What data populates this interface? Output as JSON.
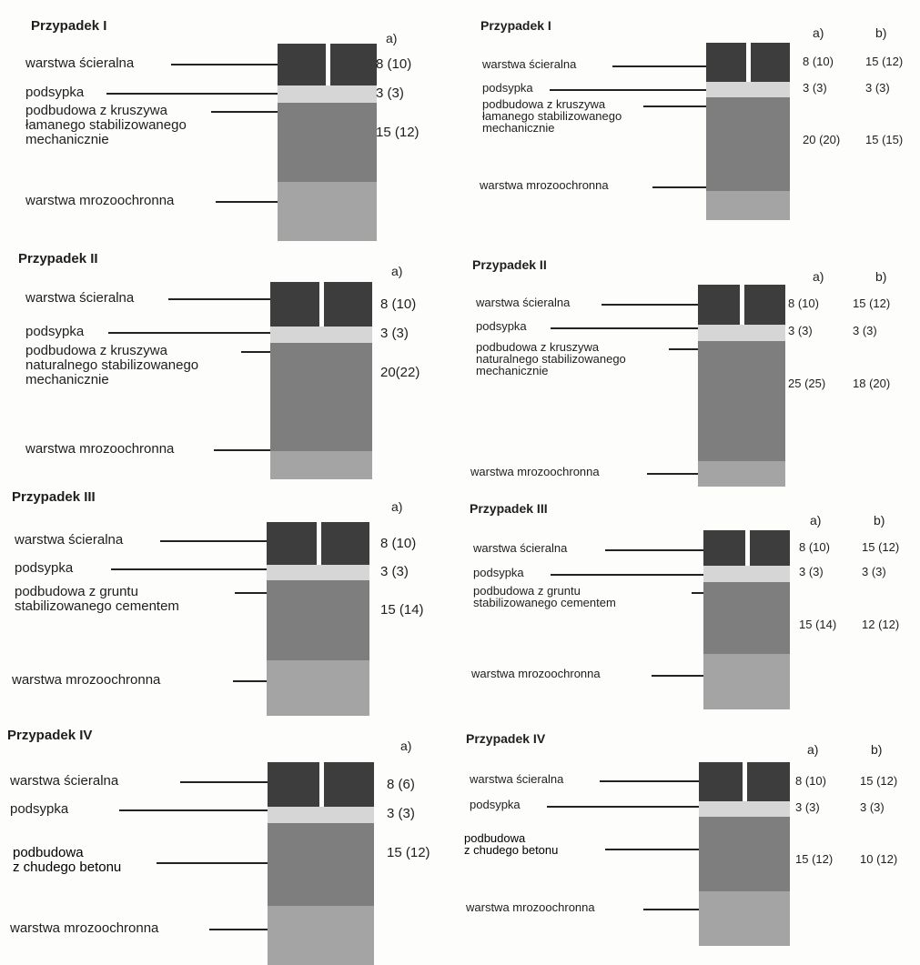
{
  "panels": [
    {
      "title": "Przypadek I",
      "cols": [
        "a)"
      ],
      "labels": {
        "wear": "warstwa ścieralna",
        "sand": "podsypka",
        "base": [
          "podbudowa z kruszywa",
          "łamanego stabilizowanego",
          "mechanicznie"
        ],
        "frost": "warstwa mrozoochronna"
      },
      "values": {
        "wear": [
          "8 (10)"
        ],
        "sand": [
          "3 (3)"
        ],
        "base": [
          "15 (12)"
        ]
      }
    },
    {
      "title": "Przypadek I",
      "cols": [
        "a)",
        "b)"
      ],
      "labels": {
        "wear": "warstwa ścieralna",
        "sand": "podsypka",
        "base": [
          "podbudowa z kruszywa",
          "łamanego stabilizowanego",
          "mechanicznie"
        ],
        "frost": "warstwa mrozoochronna"
      },
      "values": {
        "wear": [
          "8 (10)",
          "15 (12)"
        ],
        "sand": [
          "3 (3)",
          "3 (3)"
        ],
        "base": [
          "20 (20)",
          "15 (15)"
        ]
      }
    },
    {
      "title": "Przypadek II",
      "cols": [
        "a)"
      ],
      "labels": {
        "wear": "warstwa ścieralna",
        "sand": "podsypka",
        "base": [
          "podbudowa z kruszywa",
          "naturalnego stabilizowanego",
          "mechanicznie"
        ],
        "frost": "warstwa mrozoochronna"
      },
      "values": {
        "wear": [
          "8 (10)"
        ],
        "sand": [
          "3 (3)"
        ],
        "base": [
          "20(22)"
        ]
      }
    },
    {
      "title": "Przypadek II",
      "cols": [
        "a)",
        "b)"
      ],
      "labels": {
        "wear": "warstwa ścieralna",
        "sand": "podsypka",
        "base": [
          "podbudowa z kruszywa",
          "naturalnego stabilizowanego",
          "mechanicznie"
        ],
        "frost": "warstwa mrozoochronna"
      },
      "values": {
        "wear": [
          "8 (10)",
          "15 (12)"
        ],
        "sand": [
          "3 (3)",
          "3 (3)"
        ],
        "base": [
          "25 (25)",
          "18 (20)"
        ]
      }
    },
    {
      "title": "Przypadek III",
      "cols": [
        "a)"
      ],
      "labels": {
        "wear": "warstwa ścieralna",
        "sand": "podsypka",
        "base": [
          "podbudowa z gruntu",
          "stabilizowanego cementem"
        ],
        "frost": "warstwa mrozoochronna"
      },
      "values": {
        "wear": [
          "8 (10)"
        ],
        "sand": [
          "3 (3)"
        ],
        "base": [
          "15 (14)"
        ]
      }
    },
    {
      "title": "Przypadek III",
      "cols": [
        "a)",
        "b)"
      ],
      "labels": {
        "wear": "warstwa ścieralna",
        "sand": "podsypka",
        "base": [
          "podbudowa z gruntu",
          "stabilizowanego cementem"
        ],
        "frost": "warstwa mrozoochronna"
      },
      "values": {
        "wear": [
          "8 (10)",
          "15 (12)"
        ],
        "sand": [
          "3 (3)",
          "3 (3)"
        ],
        "base": [
          "15 (14)",
          "12 (12)"
        ]
      }
    },
    {
      "title": "Przypadek IV",
      "cols": [
        "a)"
      ],
      "labels": {
        "wear": "warstwa ścieralna",
        "sand": "podsypka",
        "base": [
          "podbudowa",
          "z chudego betonu"
        ],
        "frost": "warstwa mrozoochronna"
      },
      "values": {
        "wear": [
          "8 (6)"
        ],
        "sand": [
          "3 (3)"
        ],
        "base": [
          "15 (12)"
        ]
      }
    },
    {
      "title": "Przypadek IV",
      "cols": [
        "a)",
        "b)"
      ],
      "labels": {
        "wear": "warstwa ścieralna",
        "sand": "podsypka",
        "base": [
          "podbudowa",
          "z chudego betonu"
        ],
        "frost": "warstwa mrozoochronna"
      },
      "values": {
        "wear": [
          "8 (10)",
          "15 (12)"
        ],
        "sand": [
          "3 (3)",
          "3 (3)"
        ],
        "base": [
          "15 (12)",
          "10 (12)"
        ]
      }
    }
  ]
}
